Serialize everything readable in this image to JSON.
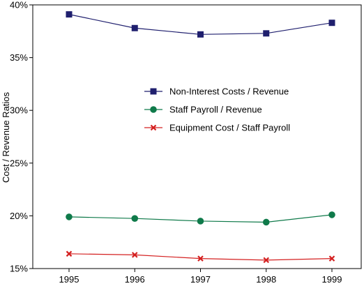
{
  "chart_data": {
    "type": "line",
    "categories": [
      "1995",
      "1996",
      "1997",
      "1998",
      "1999"
    ],
    "ylabel": "Cost / Revenue Ratios",
    "xlabel": "",
    "ylim": [
      15,
      40
    ],
    "yticks": [
      15,
      20,
      25,
      30,
      35,
      40
    ],
    "ytick_labels": [
      "15%",
      "20%",
      "25%",
      "30%",
      "35%",
      "40%"
    ],
    "grid": false,
    "legend_position": "center",
    "series": [
      {
        "name": "Non-Interest Costs / Revenue",
        "values": [
          39.1,
          37.8,
          37.2,
          37.3,
          38.3
        ],
        "color": "#1f1f6e",
        "marker": "square"
      },
      {
        "name": "Staff Payroll / Revenue",
        "values": [
          19.9,
          19.75,
          19.5,
          19.4,
          20.1
        ],
        "color": "#0f7a4a",
        "marker": "circle"
      },
      {
        "name": "Equipment Cost / Staff Payroll",
        "values": [
          16.4,
          16.3,
          15.95,
          15.8,
          15.95
        ],
        "color": "#d42020",
        "marker": "x"
      }
    ]
  }
}
